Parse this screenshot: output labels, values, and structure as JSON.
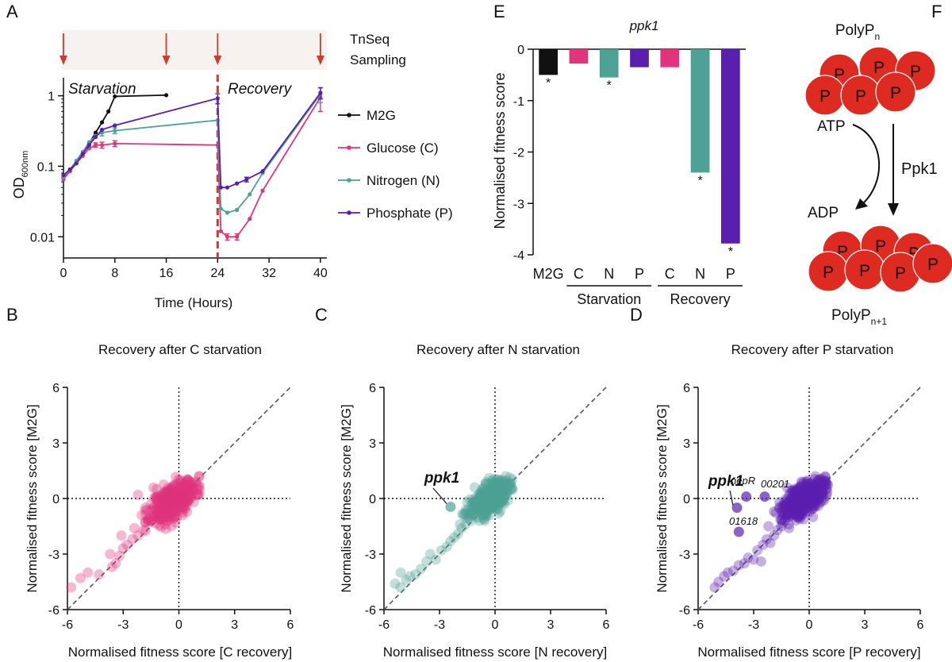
{
  "panels": {
    "A": {
      "label": "A",
      "sampling_text": [
        "TnSeq",
        "Sampling"
      ],
      "sampling_times": [
        0,
        16,
        24,
        40
      ],
      "phase_labels": [
        "Starvation",
        "Recovery"
      ],
      "colors": {
        "M2G": "#111111",
        "Glucose (C)": "#e0357d",
        "Nitrogen (N)": "#4ea195",
        "Phosphate (P)": "#5b1fb0",
        "marker": "#d23a2a"
      }
    },
    "B": {
      "label": "B"
    },
    "C": {
      "label": "C",
      "annotations": [
        "ppk1"
      ]
    },
    "D": {
      "label": "D",
      "annotations": [
        "ppk1",
        "nepR",
        "00201",
        "01618"
      ]
    },
    "E": {
      "label": "E"
    },
    "F": {
      "label": "F",
      "top_label": "PolyP",
      "top_sub": "n",
      "bottom_label": "PolyP",
      "bottom_sub": "n+1",
      "atp": "ATP",
      "adp": "ADP",
      "enzyme": "Ppk1",
      "bead_letter": "P",
      "colors": {
        "bead": "#de2b21",
        "enzyme": "#b9a27a"
      }
    }
  },
  "chart_data": [
    {
      "id": "A",
      "type": "line",
      "xlabel": "Time (Hours)",
      "ylabel": "OD",
      "ylabel_sub": "600nm",
      "yscale": "log",
      "xlim": [
        0,
        41
      ],
      "ylim": [
        0.005,
        1.8
      ],
      "xticks": [
        0,
        8,
        16,
        24,
        32,
        40
      ],
      "yticks": [
        0.01,
        0.1,
        1
      ],
      "ytick_labels": [
        "0.01",
        "0.1",
        "1"
      ],
      "series": [
        {
          "name": "M2G",
          "x": [
            0,
            1,
            2,
            3,
            4,
            5,
            6,
            7,
            8,
            16
          ],
          "y": [
            0.068,
            0.085,
            0.11,
            0.15,
            0.21,
            0.3,
            0.42,
            0.6,
            0.98,
            1.02
          ]
        },
        {
          "name": "Glucose (C)",
          "x": [
            0,
            1,
            2,
            3,
            4,
            5,
            6,
            8,
            24,
            24.5,
            25.5,
            27,
            29,
            31,
            40
          ],
          "y": [
            0.065,
            0.085,
            0.11,
            0.14,
            0.18,
            0.2,
            0.2,
            0.21,
            0.2,
            0.012,
            0.01,
            0.01,
            0.018,
            0.045,
            0.95
          ],
          "err": [
            0,
            0,
            0,
            0,
            0,
            0.015,
            0.02,
            0.02,
            0,
            0,
            0.001,
            0.001,
            0,
            0,
            0.35
          ]
        },
        {
          "name": "Nitrogen (N)",
          "x": [
            0,
            1,
            2,
            3,
            4,
            5,
            6,
            8,
            24,
            24.5,
            25.5,
            27,
            29,
            31,
            40
          ],
          "y": [
            0.07,
            0.09,
            0.12,
            0.16,
            0.22,
            0.27,
            0.3,
            0.32,
            0.45,
            0.025,
            0.022,
            0.024,
            0.04,
            0.08,
            1.05
          ],
          "err": [
            0,
            0,
            0,
            0,
            0,
            0,
            0.03,
            0.03,
            0,
            0,
            0,
            0,
            0,
            0,
            0.25
          ]
        },
        {
          "name": "Phosphate (P)",
          "x": [
            0,
            1,
            2,
            3,
            4,
            5,
            6,
            8,
            24,
            24.5,
            25.5,
            27,
            28.5,
            31,
            40
          ],
          "y": [
            0.075,
            0.09,
            0.11,
            0.15,
            0.2,
            0.26,
            0.33,
            0.38,
            0.92,
            0.05,
            0.05,
            0.057,
            0.065,
            0.085,
            1.1
          ],
          "err": [
            0,
            0,
            0,
            0,
            0,
            0,
            0,
            0,
            0.15,
            0,
            0,
            0,
            0.005,
            0,
            0.2
          ]
        }
      ]
    },
    {
      "id": "E",
      "type": "bar",
      "title": "ppk1",
      "ylabel": "Normalised fitness score",
      "ylim": [
        -4,
        0
      ],
      "yticks": [
        0,
        -1,
        -2,
        -3,
        -4
      ],
      "categories": [
        "M2G",
        "C",
        "N",
        "P",
        "C",
        "N",
        "P"
      ],
      "values": [
        -0.5,
        -0.28,
        -0.55,
        -0.35,
        -0.35,
        -2.4,
        -3.78
      ],
      "colors": [
        "#111111",
        "#e0357d",
        "#4ea195",
        "#5b1fb0",
        "#e0357d",
        "#4ea195",
        "#5b1fb0"
      ],
      "significant": [
        true,
        false,
        true,
        false,
        false,
        true,
        true
      ],
      "marker_symbol": "*",
      "groups": [
        {
          "label": "Starvation",
          "from": 1,
          "to": 3
        },
        {
          "label": "Recovery",
          "from": 4,
          "to": 6
        }
      ]
    },
    {
      "id": "B",
      "type": "scatter",
      "title": "Recovery after C starvation",
      "xlabel": "Normalised fitness score [C recovery]",
      "ylabel": "Normalised fitness score [M2G]",
      "xlim": [
        -6,
        6
      ],
      "ylim": [
        -6,
        6
      ],
      "ticks": [
        -6,
        -3,
        0,
        3,
        6
      ],
      "color": "#e0357d",
      "points": [
        [
          -5.8,
          -4.8
        ],
        [
          -5.3,
          -4.3
        ],
        [
          -4.9,
          -4.0
        ],
        [
          -4.3,
          -4.1
        ],
        [
          -3.6,
          -3.7
        ],
        [
          -3.4,
          -3.5
        ],
        [
          -3.2,
          -3.1
        ],
        [
          -3.7,
          -3.0
        ],
        [
          -3.0,
          -2.7
        ],
        [
          -2.8,
          -2.5
        ],
        [
          -2.5,
          -2.2
        ],
        [
          -3.1,
          -2.0
        ],
        [
          -2.2,
          -2.0
        ],
        [
          -2.4,
          -1.6
        ],
        [
          -1.9,
          -1.7
        ],
        [
          -1.8,
          -1.3
        ],
        [
          -1.5,
          -1.2
        ],
        [
          -2.0,
          -0.9
        ],
        [
          -1.3,
          -1.0
        ],
        [
          -1.2,
          -0.6
        ],
        [
          -1.5,
          -0.3
        ],
        [
          -1.0,
          -0.9
        ],
        [
          -0.9,
          -0.3
        ],
        [
          -0.8,
          0.3
        ],
        [
          -1.2,
          0.5
        ],
        [
          -0.6,
          -1.2
        ],
        [
          -0.4,
          -1.5
        ],
        [
          -0.2,
          -1.3
        ],
        [
          -0.5,
          -0.7
        ],
        [
          0.2,
          -0.9
        ],
        [
          0.4,
          -0.4
        ],
        [
          0.6,
          0.2
        ],
        [
          0.7,
          0.7
        ],
        [
          0.9,
          0.9
        ],
        [
          0.5,
          1.0
        ],
        [
          0.3,
          0.8
        ],
        [
          -0.1,
          0.7
        ],
        [
          -0.4,
          0.6
        ],
        [
          0.8,
          -0.2
        ],
        [
          -2.2,
          0.2
        ],
        [
          -1.8,
          -0.5
        ]
      ],
      "cluster": {
        "cx": -0.3,
        "cy": -0.1,
        "sx": 0.6,
        "sy": 0.55,
        "rho": 0.6,
        "n": 380
      }
    },
    {
      "id": "C",
      "type": "scatter",
      "title": "Recovery after N starvation",
      "xlabel": "Normalised fitness score [N recovery]",
      "ylabel": "Normalised fitness score [M2G]",
      "xlim": [
        -6,
        6
      ],
      "ylim": [
        -6,
        6
      ],
      "ticks": [
        -6,
        -3,
        0,
        3,
        6
      ],
      "color": "#4ea195",
      "highlight": [
        {
          "label": "ppk1",
          "x": -2.4,
          "y": -0.45
        }
      ],
      "points": [
        [
          -5.4,
          -4.6
        ],
        [
          -5.1,
          -4.8
        ],
        [
          -4.8,
          -4.4
        ],
        [
          -4.6,
          -4.2
        ],
        [
          -4.3,
          -4.1
        ],
        [
          -5.1,
          -4.0
        ],
        [
          -4.0,
          -3.8
        ],
        [
          -3.7,
          -3.4
        ],
        [
          -3.2,
          -3.3
        ],
        [
          -3.5,
          -3.0
        ],
        [
          -2.9,
          -2.8
        ],
        [
          -2.6,
          -2.6
        ],
        [
          -2.4,
          -2.3
        ],
        [
          -2.2,
          -2.1
        ],
        [
          -2.0,
          -1.9
        ],
        [
          -1.8,
          -1.6
        ],
        [
          -1.6,
          -1.4
        ],
        [
          -1.5,
          -1.1
        ],
        [
          -1.3,
          -1.2
        ],
        [
          -1.2,
          -0.9
        ],
        [
          -1.0,
          -0.6
        ],
        [
          -1.5,
          -0.2
        ],
        [
          -0.9,
          -0.4
        ],
        [
          -0.8,
          0.3
        ],
        [
          -1.1,
          0.6
        ],
        [
          -0.6,
          -0.9
        ],
        [
          0.2,
          -0.8
        ],
        [
          0.5,
          -0.3
        ],
        [
          0.7,
          0.4
        ],
        [
          0.8,
          0.8
        ],
        [
          0.4,
          1.0
        ],
        [
          -0.2,
          0.9
        ],
        [
          -0.5,
          0.8
        ],
        [
          0.7,
          -0.1
        ],
        [
          -1.9,
          -1.4
        ],
        [
          -1.7,
          -0.9
        ]
      ],
      "cluster": {
        "cx": -0.3,
        "cy": 0.0,
        "sx": 0.5,
        "sy": 0.45,
        "rho": 0.6,
        "n": 420
      }
    },
    {
      "id": "D",
      "type": "scatter",
      "title": "Recovery after P starvation",
      "xlabel": "Normalised fitness score [P recovery]",
      "ylabel": "Normalised fitness score [M2G]",
      "xlim": [
        -6,
        6
      ],
      "ylim": [
        -6,
        6
      ],
      "ticks": [
        -6,
        -3,
        0,
        3,
        6
      ],
      "color": "#5b1fb0",
      "highlight": [
        {
          "label": "ppk1",
          "x": -3.9,
          "y": -0.5
        },
        {
          "label": "nepR",
          "x": -3.4,
          "y": 0.1
        },
        {
          "label": "00201",
          "x": -2.4,
          "y": 0.1
        },
        {
          "label": "01618",
          "x": -3.8,
          "y": -1.8
        }
      ],
      "points": [
        [
          -5.1,
          -4.8
        ],
        [
          -4.9,
          -4.5
        ],
        [
          -4.6,
          -4.2
        ],
        [
          -4.4,
          -4.0
        ],
        [
          -4.1,
          -3.9
        ],
        [
          -3.8,
          -3.6
        ],
        [
          -3.5,
          -3.5
        ],
        [
          -3.3,
          -3.2
        ],
        [
          -3.0,
          -3.3
        ],
        [
          -2.6,
          -3.4
        ],
        [
          -2.8,
          -2.8
        ],
        [
          -2.5,
          -2.5
        ],
        [
          -2.3,
          -2.2
        ],
        [
          -2.1,
          -2.4
        ],
        [
          -1.9,
          -2.0
        ],
        [
          -1.7,
          -1.7
        ],
        [
          -1.5,
          -1.5
        ],
        [
          -1.3,
          -1.2
        ],
        [
          -1.1,
          -1.4
        ],
        [
          -1.0,
          -0.9
        ],
        [
          -1.4,
          -0.5
        ],
        [
          -0.9,
          -0.4
        ],
        [
          -0.8,
          0.4
        ],
        [
          -1.2,
          0.6
        ],
        [
          -0.5,
          -1.1
        ],
        [
          0.2,
          -1.0
        ],
        [
          0.5,
          -0.4
        ],
        [
          0.7,
          0.3
        ],
        [
          0.9,
          0.9
        ],
        [
          0.5,
          1.0
        ],
        [
          -0.1,
          0.9
        ],
        [
          -0.4,
          0.8
        ],
        [
          0.8,
          -0.1
        ],
        [
          -1.9,
          -0.7
        ],
        [
          -1.6,
          -0.2
        ],
        [
          -2.2,
          -1.5
        ]
      ],
      "cluster": {
        "cx": -0.3,
        "cy": 0.0,
        "sx": 0.55,
        "sy": 0.5,
        "rho": 0.6,
        "n": 420
      }
    }
  ]
}
